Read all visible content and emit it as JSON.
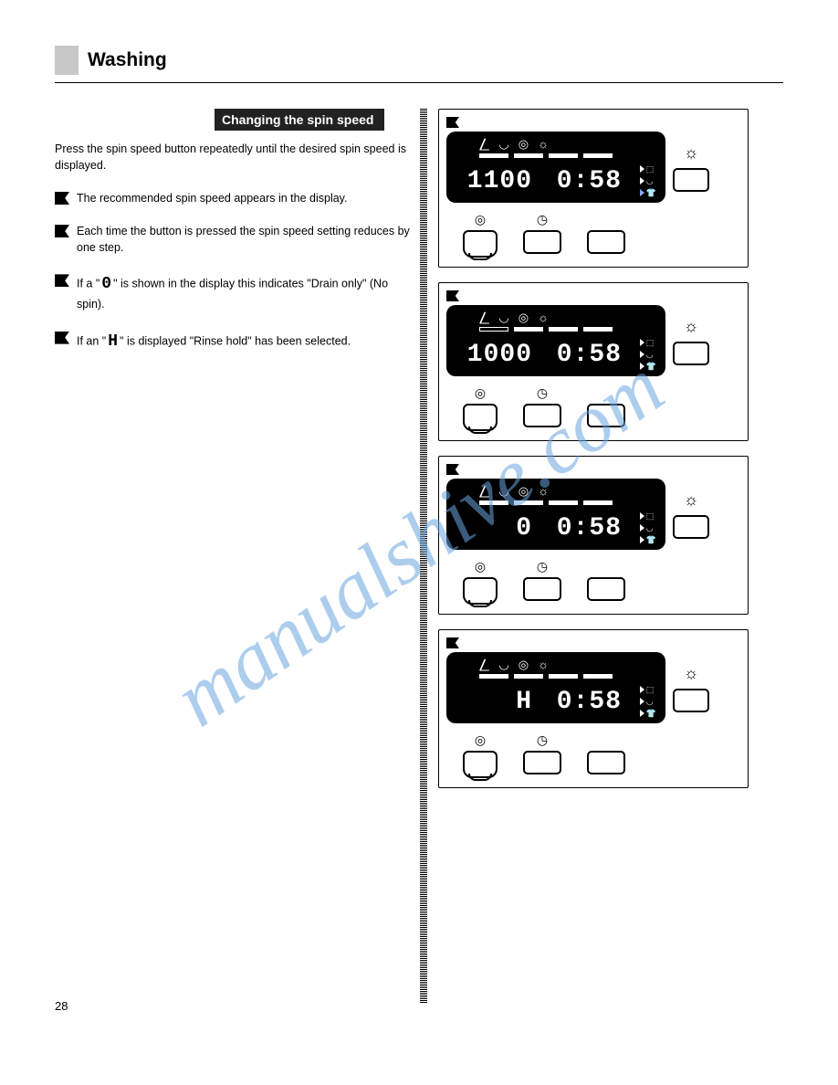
{
  "page": {
    "title": "Washing",
    "number": "28"
  },
  "watermark": "manualshive.com",
  "section_header": "Changing the spin speed",
  "intro": "Press the spin speed button repeatedly until the desired spin speed is displayed.",
  "bullets": [
    {
      "text": "The recommended spin speed appears in the display."
    },
    {
      "text": "Each time the button is pressed the spin speed setting reduces by one step."
    },
    {
      "text": "If a \"",
      "inline": "0",
      "text2": "\" is shown in the display this indicates \"Drain only\" (No spin)."
    },
    {
      "text": "If an \"",
      "inline": "H",
      "text2": "\" is displayed \"Rinse hold\" has been selected."
    }
  ],
  "panels": [
    {
      "spin": "1100",
      "time": "0:58",
      "bars": [
        "full",
        "full",
        "full",
        "full"
      ]
    },
    {
      "spin": "1000",
      "time": "0:58",
      "bars": [
        "empty",
        "full",
        "full",
        "full"
      ]
    },
    {
      "spin": "0",
      "time": "0:58",
      "bars": [
        "full",
        "full",
        "full",
        "full"
      ]
    },
    {
      "spin": "H",
      "time": "0:58",
      "bars": [
        "full",
        "full",
        "full",
        "full"
      ]
    }
  ],
  "lcd_icons": {
    "top": [
      "⎳",
      "◡",
      "◎",
      "☼"
    ],
    "right": [
      "⬚",
      "◡",
      "👕"
    ]
  },
  "side_button_icon": "☼",
  "button_row_icons": [
    "◎",
    "◷",
    ""
  ],
  "colors": {
    "lcd_bg": "#000000",
    "lcd_fg": "#ffffff",
    "selected_indicator": "#8aa8ff",
    "section_mark": "#c8c8c8"
  }
}
